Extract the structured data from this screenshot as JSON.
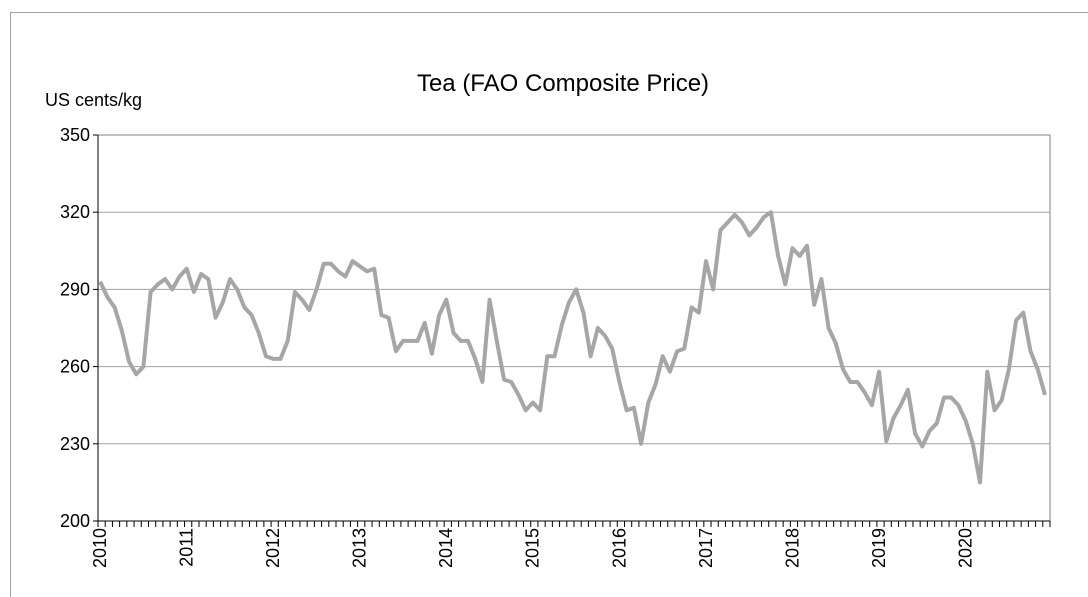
{
  "chart_data": {
    "type": "line",
    "title": "Tea (FAO Composite Price)",
    "y_label": "US cents/kg",
    "categories": [
      "2010",
      null,
      null,
      null,
      null,
      null,
      null,
      null,
      null,
      null,
      null,
      null,
      "2011",
      null,
      null,
      null,
      null,
      null,
      null,
      null,
      null,
      null,
      null,
      null,
      "2012",
      null,
      null,
      null,
      null,
      null,
      null,
      null,
      null,
      null,
      null,
      null,
      "2013",
      null,
      null,
      null,
      null,
      null,
      null,
      null,
      null,
      null,
      null,
      null,
      "2014",
      null,
      null,
      null,
      null,
      null,
      null,
      null,
      null,
      null,
      null,
      null,
      "2015",
      null,
      null,
      null,
      null,
      null,
      null,
      null,
      null,
      null,
      null,
      null,
      "2016",
      null,
      null,
      null,
      null,
      null,
      null,
      null,
      null,
      null,
      null,
      null,
      "2017",
      null,
      null,
      null,
      null,
      null,
      null,
      null,
      null,
      null,
      null,
      null,
      "2018",
      null,
      null,
      null,
      null,
      null,
      null,
      null,
      null,
      null,
      null,
      null,
      "2019",
      null,
      null,
      null,
      null,
      null,
      null,
      null,
      null,
      null,
      null,
      null,
      "2020",
      null,
      null,
      null,
      null,
      null,
      null,
      null,
      null,
      null,
      null,
      null
    ],
    "series": [
      {
        "name": "Tea",
        "color": "#a6a6a6",
        "values": [
          293,
          287,
          283,
          274,
          262,
          257,
          260,
          289,
          292,
          294,
          290,
          295,
          298,
          289,
          296,
          294,
          279,
          285,
          294,
          290,
          283,
          280,
          273,
          264,
          263,
          263,
          270,
          289,
          286,
          282,
          290,
          300,
          300,
          297,
          295,
          301,
          299,
          297,
          298,
          280,
          279,
          266,
          270,
          270,
          270,
          277,
          265,
          280,
          286,
          273,
          270,
          270,
          263,
          254,
          286,
          270,
          255,
          254,
          249,
          243,
          246,
          243,
          264,
          264,
          276,
          285,
          290,
          281,
          264,
          275,
          272,
          267,
          254,
          243,
          244,
          230,
          246,
          253,
          264,
          258,
          266,
          267,
          283,
          281,
          301,
          290,
          313,
          316,
          319,
          316,
          311,
          314,
          318,
          320,
          303,
          292,
          306,
          303,
          307,
          284,
          294,
          275,
          269,
          259,
          254,
          254,
          250,
          245,
          258,
          231,
          240,
          245,
          251,
          234,
          229,
          235,
          238,
          248,
          248,
          245,
          239,
          230,
          215,
          258,
          243,
          247,
          259,
          278,
          281,
          266,
          259,
          249
        ]
      }
    ],
    "ylim": [
      200,
      350
    ],
    "yticks": [
      200,
      230,
      260,
      290,
      320,
      350
    ],
    "grid": true
  }
}
